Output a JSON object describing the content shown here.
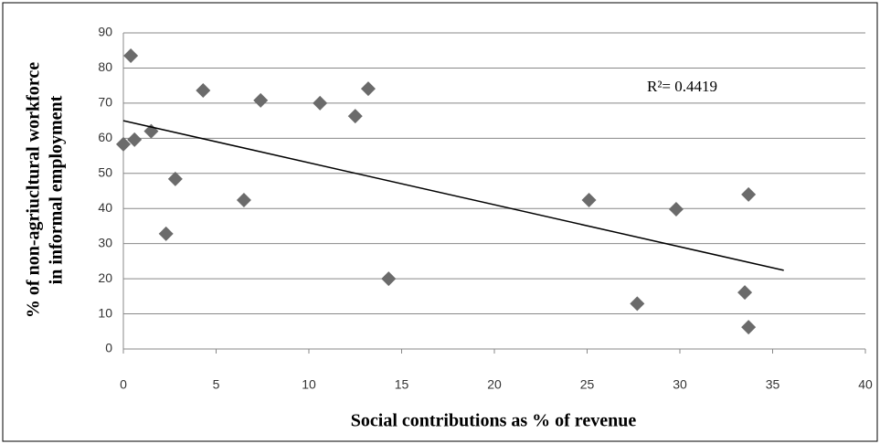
{
  "chart_data": {
    "type": "scatter",
    "x_label": "Social contributions as % of revenue",
    "y_label": [
      "% of non-agriucltural workforce",
      "in informal employment"
    ],
    "annotation": "R²= 0.4419",
    "color": "#6b6b6b",
    "grid": true,
    "xlim": [
      0,
      40
    ],
    "xticks": [
      0,
      5,
      10,
      15,
      20,
      25,
      30,
      35,
      40
    ],
    "ylim": [
      0,
      90
    ],
    "yticks": [
      0,
      10,
      20,
      30,
      40,
      50,
      60,
      70,
      80,
      90
    ],
    "x": [
      0.4,
      0,
      0.6,
      1.5,
      2.8,
      2.3,
      4.3,
      6.5,
      7.4,
      10.6,
      12.5,
      13.2,
      14.3,
      25.1,
      27.7,
      29.8,
      33.7,
      33.5,
      33.7
    ],
    "y": [
      83.5,
      58.3,
      59.6,
      62,
      48.4,
      32.8,
      73.6,
      42.4,
      70.8,
      70,
      66.3,
      74.1,
      20,
      42.4,
      12.9,
      39.8,
      44,
      16.1,
      6.2
    ],
    "trendline": {
      "x": [
        0,
        35.6
      ],
      "y": [
        65,
        22.4
      ],
      "color": "#000000"
    }
  }
}
